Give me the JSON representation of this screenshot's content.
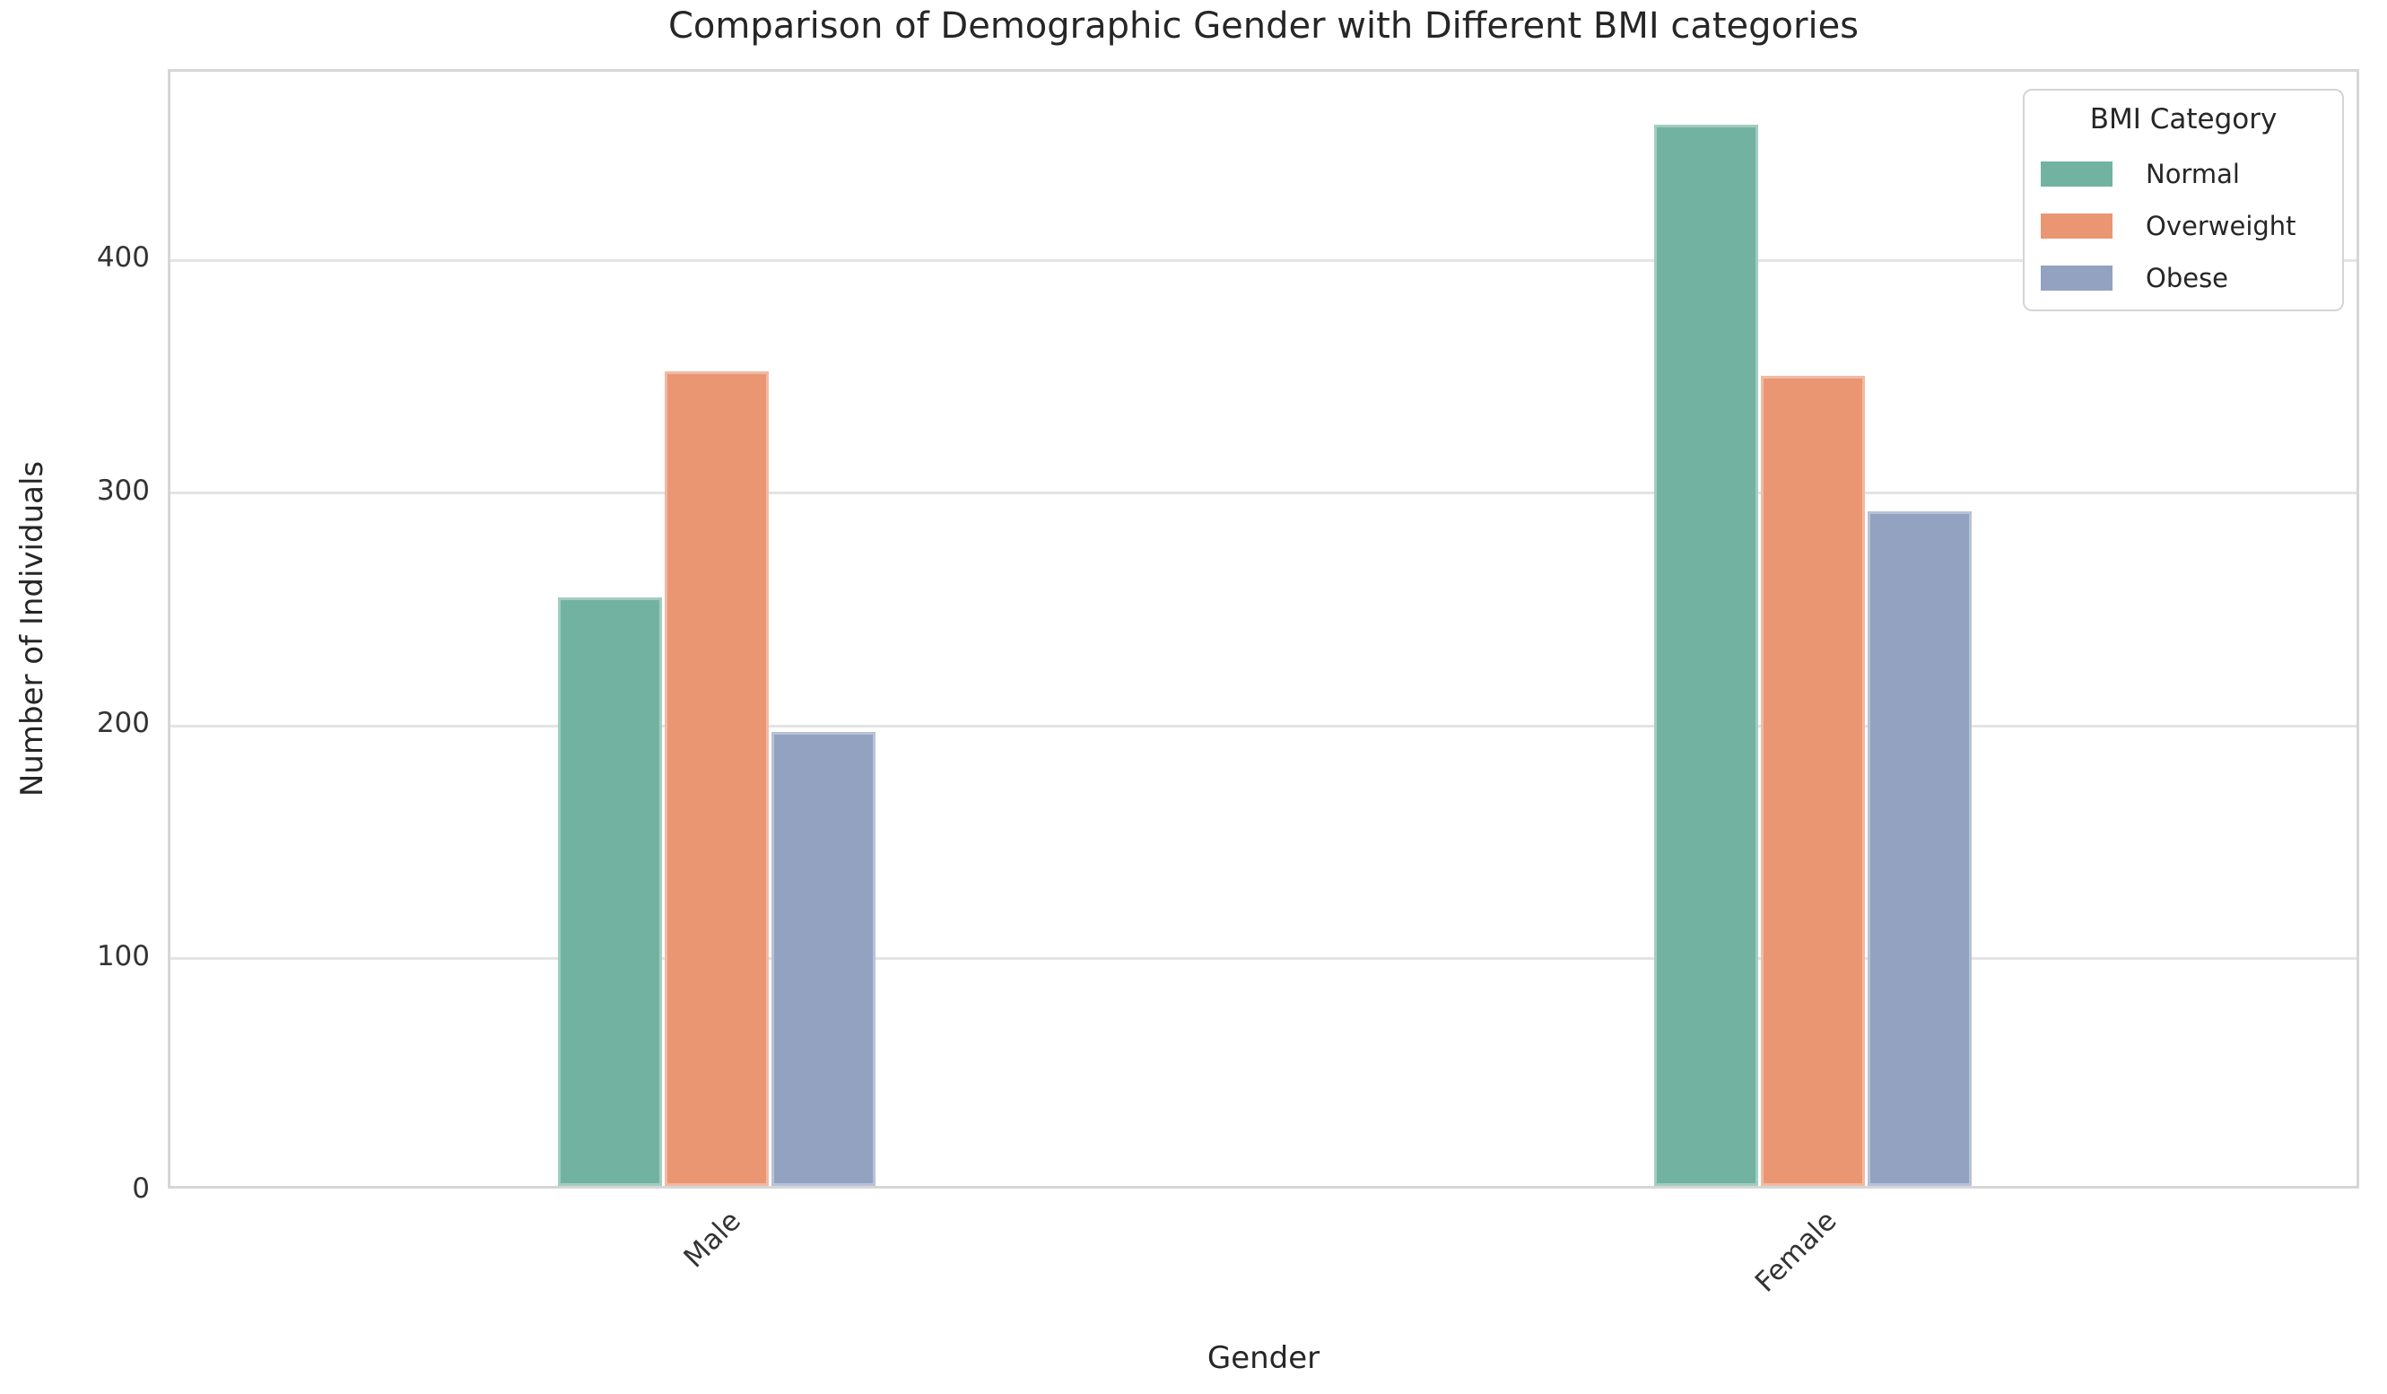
{
  "title": "Comparison of Demographic Gender with Different BMI categories",
  "axes": {
    "x_label": "Gender",
    "y_label": "Number of Individuals",
    "y_ticks": [
      0,
      100,
      200,
      300,
      400
    ]
  },
  "legend": {
    "title": "BMI Category"
  },
  "colors": {
    "normal": "#71b3a0",
    "overweight": "#ea9672",
    "obese": "#93a2c1",
    "grid": "#e4e4e4",
    "axis_border": "#d6d6d6",
    "text": "#262626"
  },
  "chart_data": {
    "type": "bar",
    "title": "Comparison of Demographic Gender with Different BMI categories",
    "xlabel": "Gender",
    "ylabel": "Number of Individuals",
    "categories": [
      "Male",
      "Female"
    ],
    "series": [
      {
        "name": "Normal",
        "color": "#71b3a0",
        "values": [
          253,
          456
        ]
      },
      {
        "name": "Overweight",
        "color": "#ea9672",
        "values": [
          350,
          348
        ]
      },
      {
        "name": "Obese",
        "color": "#93a2c1",
        "values": [
          195,
          290
        ]
      }
    ],
    "ylim": [
      0,
      481
    ],
    "y_ticks": [
      0,
      100,
      200,
      300,
      400
    ],
    "grid": true,
    "legend_title": "BMI Category",
    "legend_position": "upper right"
  }
}
